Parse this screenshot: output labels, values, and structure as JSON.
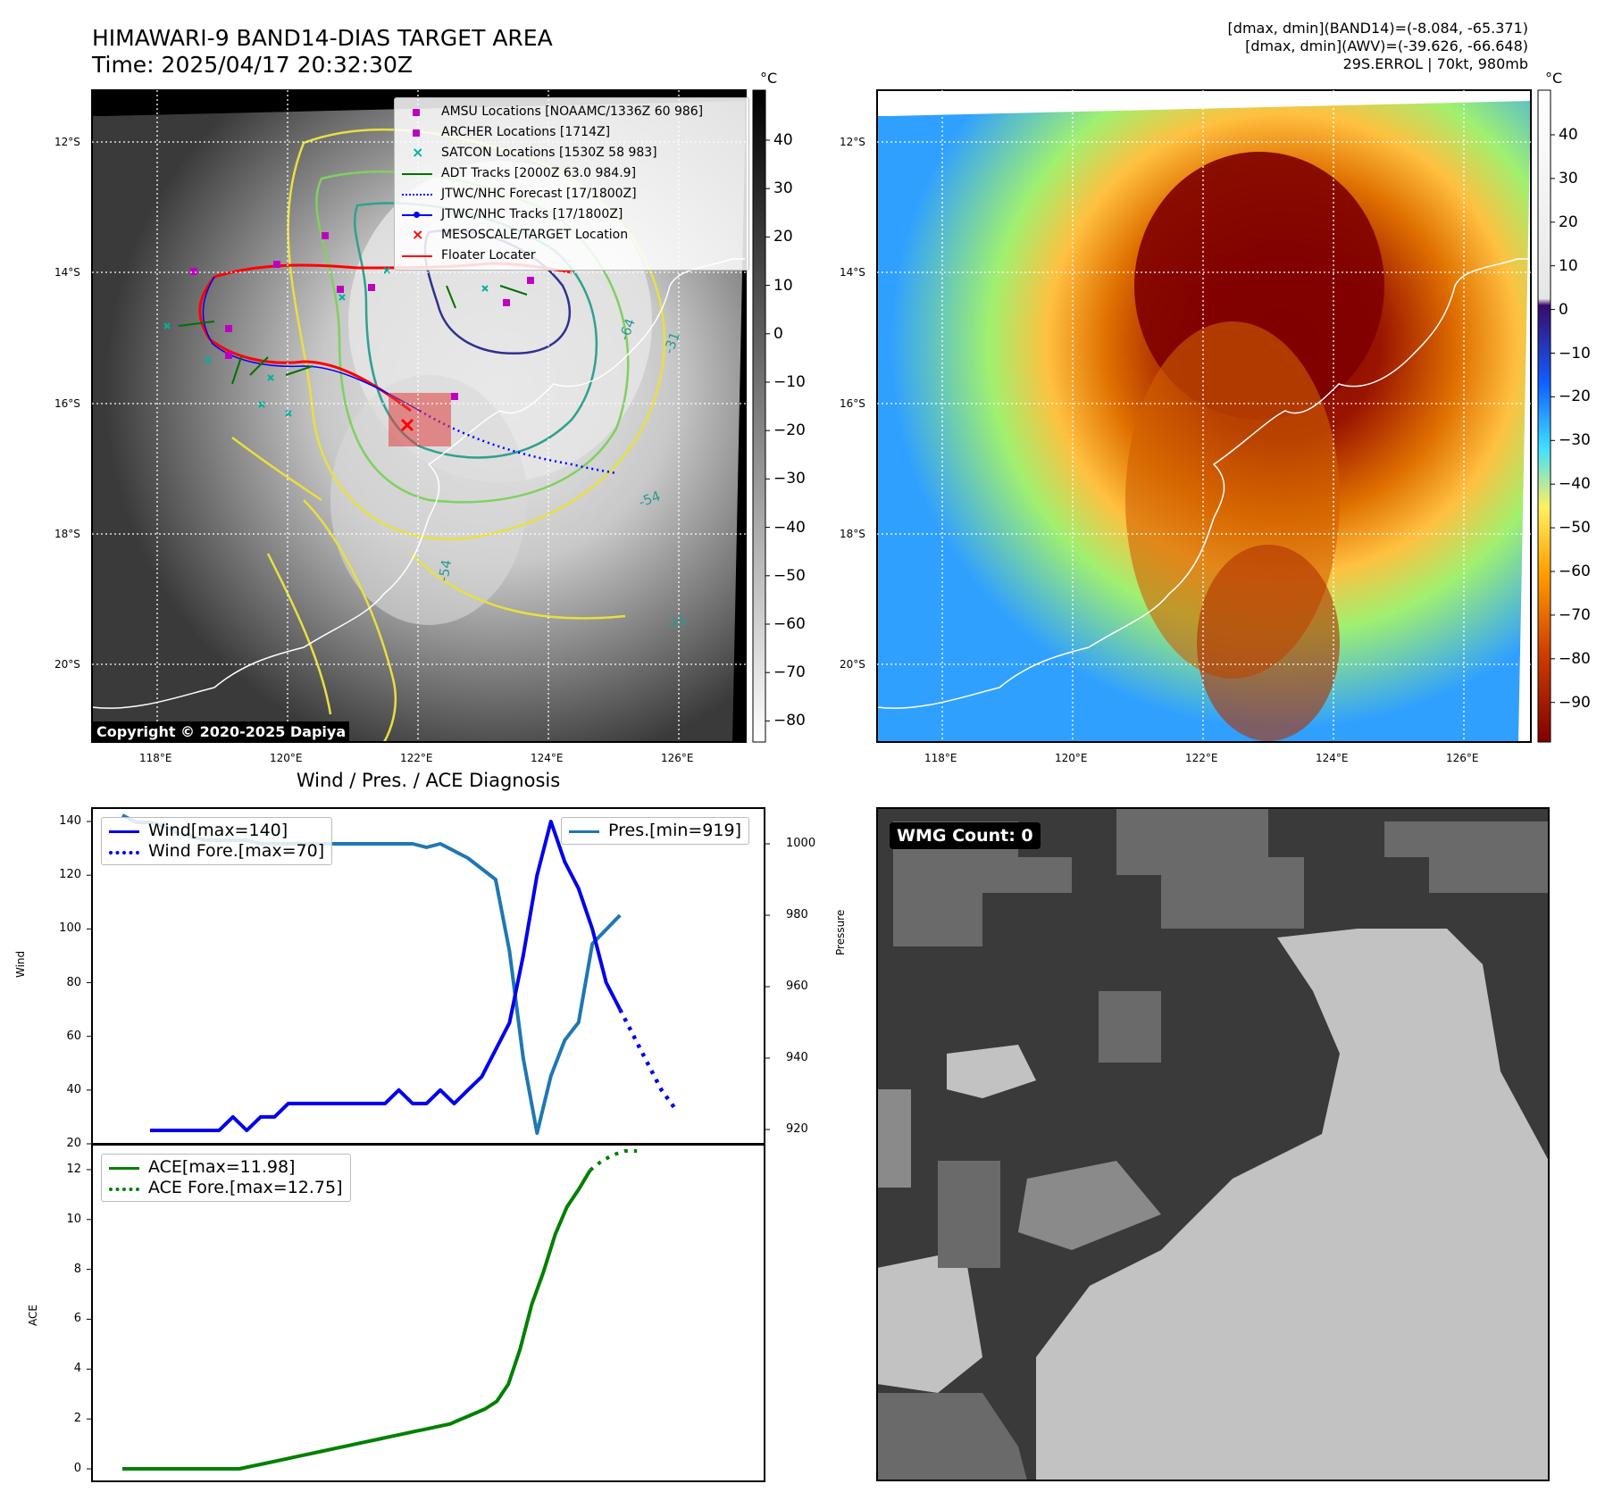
{
  "header": {
    "title_line1": "HIMAWARI-9 BAND14-DIAS TARGET AREA",
    "title_line2": "Time: 2025/04/17 20:32:30Z",
    "info_line1": "[dmax, dmin](BAND14)=(-8.084, -65.371)",
    "info_line2": "[dmax, dmin](AWV)=(-39.626, -66.648)",
    "info_line3": "29S.ERROL | 70kt, 980mb"
  },
  "map": {
    "lat_labels": [
      "12°S",
      "14°S",
      "16°S",
      "18°S",
      "20°S"
    ],
    "lon_labels": [
      "118°E",
      "120°E",
      "122°E",
      "124°E",
      "126°E"
    ],
    "copyright": "Copyright © 2020-2025 Dapiya",
    "contour_labels": [
      "-64",
      "-31",
      "-54",
      "-54",
      "-31"
    ],
    "legend": [
      {
        "label": "AMSU Locations [NOAAMC/1336Z 60 986]",
        "color": "#c000c0",
        "marker": "square"
      },
      {
        "label": "ARCHER Locations [1714Z]",
        "color": "#c000c0",
        "marker": "square"
      },
      {
        "label": "SATCON Locations [1530Z 58 983]",
        "color": "#00b0a0",
        "marker": "x"
      },
      {
        "label": "ADT Tracks [2000Z 63.0 984.9]",
        "color": "#007000",
        "marker": "line"
      },
      {
        "label": "JTWC/NHC Forecast [17/1800Z]",
        "color": "#0000ff",
        "marker": "dotted"
      },
      {
        "label": "JTWC/NHC Tracks [17/1800Z]",
        "color": "#0000ff",
        "marker": "line-dot"
      },
      {
        "label": "MESOSCALE/TARGET Location",
        "color": "#ff0000",
        "marker": "x"
      },
      {
        "label": "Floater Locater",
        "color": "#ff0000",
        "marker": "line"
      }
    ]
  },
  "colorbars": {
    "unit": "°C",
    "gray_ticks": [
      "40",
      "30",
      "20",
      "10",
      "0",
      "−10",
      "−20",
      "−30",
      "−40",
      "−50",
      "−60",
      "−70",
      "−80"
    ],
    "color_ticks": [
      "40",
      "30",
      "20",
      "10",
      "0",
      "−10",
      "−20",
      "−30",
      "−40",
      "−50",
      "−60",
      "−70",
      "−80",
      "−90"
    ]
  },
  "diag": {
    "title": "Wind / Pres. / ACE Diagnosis",
    "wind_ylabel": "Wind",
    "pres_ylabel": "Pressure",
    "ace_ylabel": "ACE",
    "wind_ticks": [
      "20",
      "40",
      "60",
      "80",
      "100",
      "120",
      "140"
    ],
    "pres_ticks": [
      "920",
      "940",
      "960",
      "980",
      "1000"
    ],
    "ace_ticks": [
      "0",
      "2",
      "4",
      "6",
      "8",
      "10",
      "12"
    ],
    "legend_wind": "Wind[max=140]",
    "legend_wind_fore": "Wind Fore.[max=70]",
    "legend_pres": "Pres.[min=919]",
    "legend_ace": "ACE[max=11.98]",
    "legend_ace_fore": "ACE Fore.[max=12.75]"
  },
  "wmg": {
    "label": "WMG Count: 0"
  },
  "colors": {
    "wind": "#0000ee",
    "pres": "#1f77b4",
    "ace": "#008000"
  },
  "chart_data": [
    {
      "type": "line",
      "title": "Wind / Pres. / ACE Diagnosis",
      "ylabel": "Wind",
      "ylim": [
        20,
        145
      ],
      "series": [
        {
          "name": "Wind[max=140]",
          "values": [
            25,
            25,
            25,
            25,
            25,
            25,
            30,
            25,
            30,
            30,
            35,
            35,
            35,
            35,
            35,
            35,
            35,
            35,
            40,
            35,
            35,
            40,
            35,
            40,
            45,
            55,
            65,
            90,
            120,
            140,
            125,
            115,
            100,
            80,
            70
          ]
        },
        {
          "name": "Wind Fore.[max=70]",
          "values": [
            70,
            60,
            50,
            40,
            33
          ]
        }
      ]
    },
    {
      "type": "line",
      "ylabel": "Pressure",
      "ylim": [
        916,
        1010
      ],
      "series": [
        {
          "name": "Pres.[min=919]",
          "values": [
            1008,
            1006,
            1006,
            1005,
            1003,
            1002,
            1001,
            1001,
            1001,
            1001,
            1000,
            1000,
            1000,
            1000,
            1000,
            1000,
            1000,
            1000,
            1000,
            1000,
            1000,
            1000,
            999,
            1000,
            998,
            996,
            993,
            990,
            970,
            940,
            919,
            935,
            945,
            950,
            972,
            976,
            980
          ]
        }
      ]
    },
    {
      "type": "line",
      "ylabel": "ACE",
      "ylim": [
        -0.5,
        13
      ],
      "series": [
        {
          "name": "ACE[max=11.98]",
          "values": [
            0,
            0,
            0,
            0,
            0,
            0,
            0,
            0,
            0,
            0,
            0,
            0.1,
            0.2,
            0.3,
            0.4,
            0.5,
            0.6,
            0.7,
            0.8,
            0.9,
            1.0,
            1.1,
            1.2,
            1.3,
            1.4,
            1.5,
            1.6,
            1.7,
            1.8,
            2.0,
            2.2,
            2.4,
            2.7,
            3.4,
            4.8,
            6.6,
            7.9,
            9.4,
            10.5,
            11.2,
            11.98
          ]
        },
        {
          "name": "ACE Fore.[max=12.75]",
          "values": [
            11.98,
            12.35,
            12.6,
            12.75,
            12.75
          ]
        }
      ]
    }
  ]
}
